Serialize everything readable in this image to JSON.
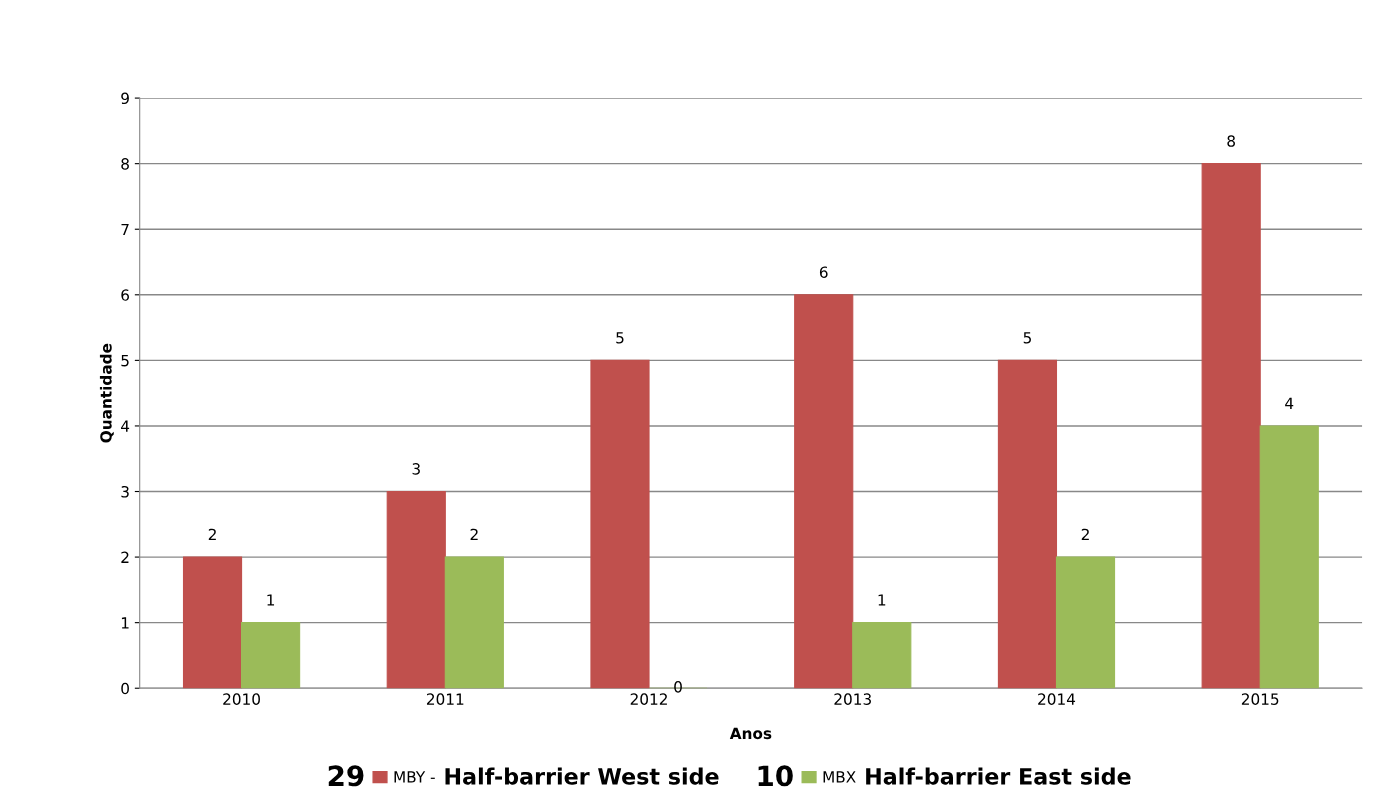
{
  "chart_data": {
    "type": "bar",
    "xlabel": "Anos",
    "ylabel": "Quantidade",
    "categories": [
      "2010",
      "2011",
      "2012",
      "2013",
      "2014",
      "2015"
    ],
    "series": [
      {
        "name": "MBY -",
        "color": "#c0504d",
        "values": [
          2,
          3,
          5,
          6,
          5,
          8
        ]
      },
      {
        "name": "MBX",
        "color": "#9bbb59",
        "values": [
          1,
          2,
          0,
          1,
          2,
          4
        ]
      }
    ],
    "ylim": [
      0,
      9
    ],
    "yticks": [
      0,
      1,
      2,
      3,
      4,
      5,
      6,
      7,
      8,
      9
    ],
    "grid": "y",
    "legend": "bottom",
    "data_labels": true,
    "annotations": [
      "29",
      "Half-barrier West side",
      "10",
      "Half-barrier East side"
    ]
  }
}
